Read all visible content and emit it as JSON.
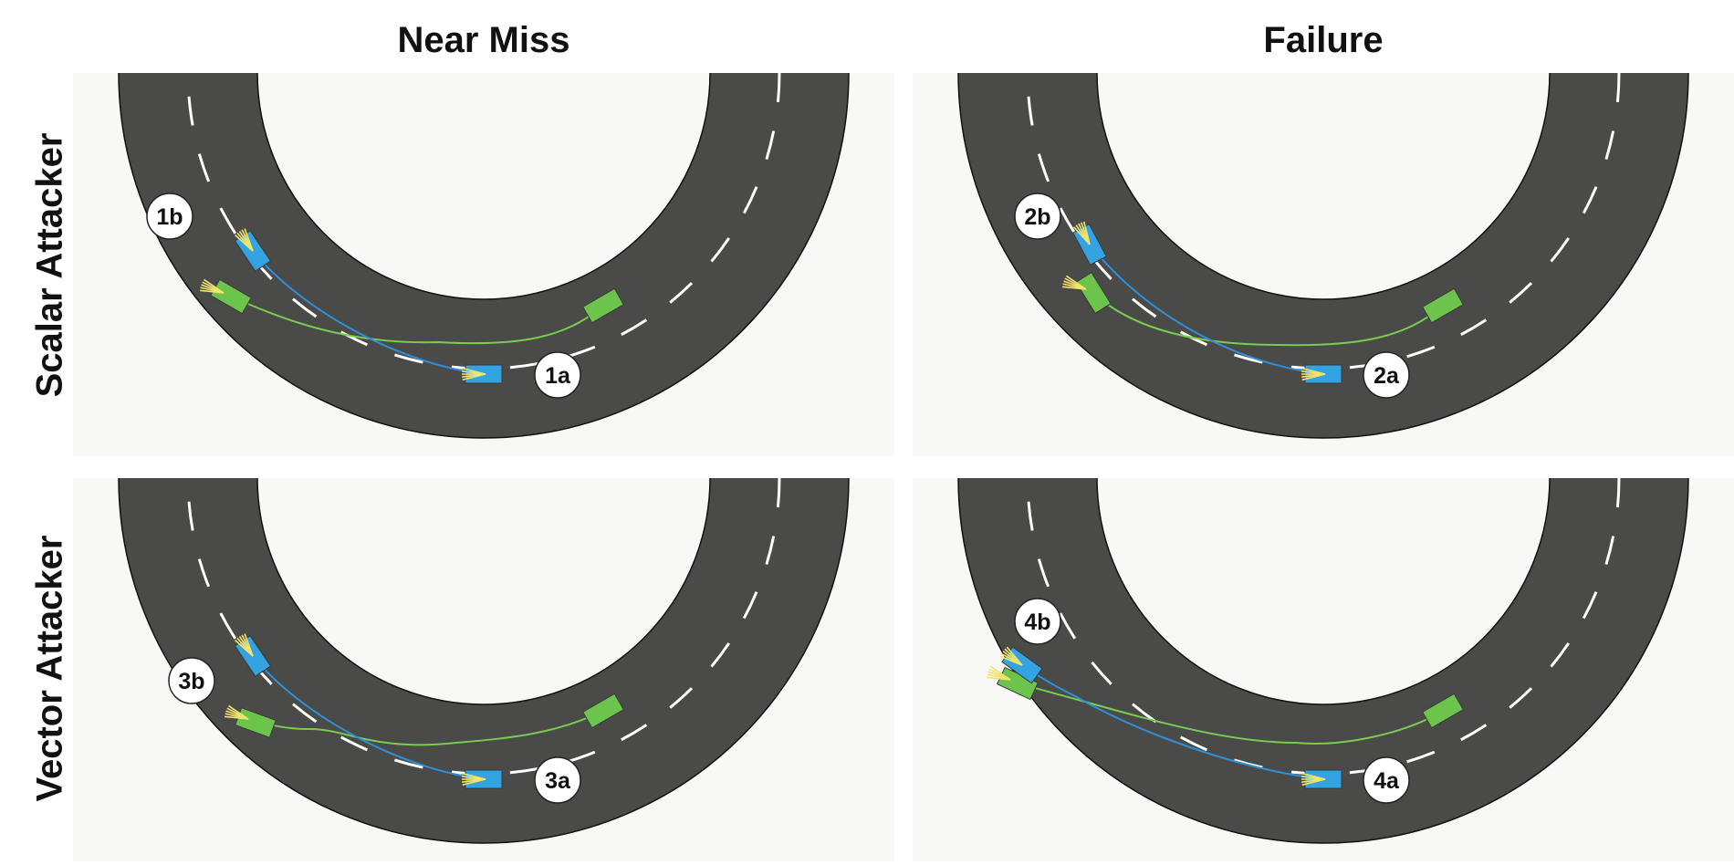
{
  "columns": [
    "Near Miss",
    "Failure"
  ],
  "rows": [
    "Scalar Attacker",
    "Vector Attacker"
  ],
  "colors": {
    "road": "#4a4b48",
    "lane_mark": "#ffffff",
    "ego_car": "#33a3e2",
    "ego_path": "#2f8fd8",
    "attacker_car": "#6dc44c",
    "attacker_path": "#78cc50",
    "prediction": "#f3e46a",
    "background": "#f8f9f7"
  },
  "panels": [
    {
      "id": "scalar-near-miss",
      "start_label": "1a",
      "end_label": "1b"
    },
    {
      "id": "scalar-failure",
      "start_label": "2a",
      "end_label": "2b"
    },
    {
      "id": "vector-near-miss",
      "start_label": "3a",
      "end_label": "3b"
    },
    {
      "id": "vector-failure",
      "start_label": "4a",
      "end_label": "4b"
    }
  ]
}
